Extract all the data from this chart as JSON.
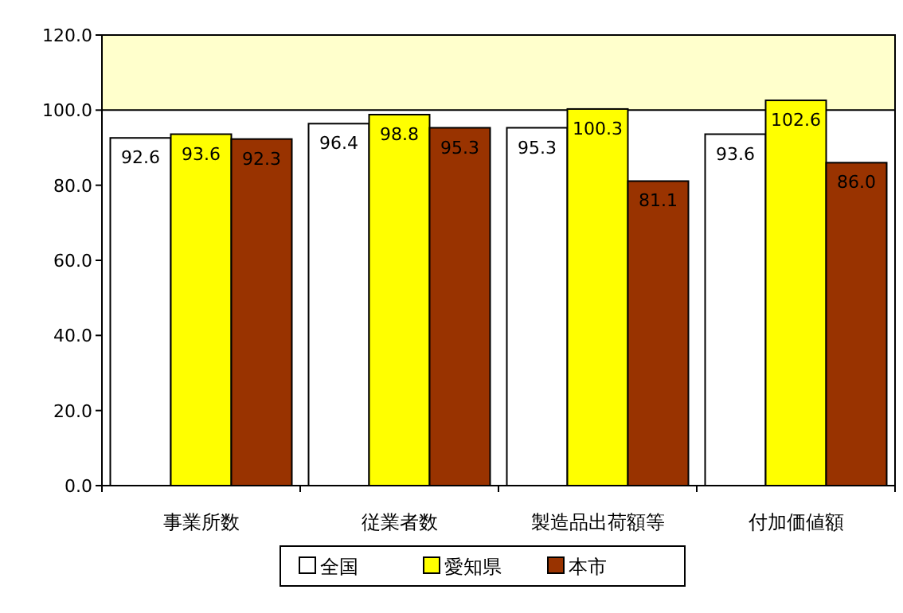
{
  "chart_data": {
    "type": "bar",
    "categories": [
      "事業所数",
      "従業者数",
      "製造品出荷額等",
      "付加価値額"
    ],
    "series": [
      {
        "name": "全国",
        "color": "#ffffff",
        "values": [
          92.6,
          96.4,
          95.3,
          93.6
        ]
      },
      {
        "name": "愛知県",
        "color": "#ffff00",
        "values": [
          93.6,
          98.8,
          100.3,
          102.6
        ]
      },
      {
        "name": "本市",
        "color": "#993300",
        "values": [
          92.3,
          95.3,
          81.1,
          86.0
        ],
        "value_labels": [
          "92.3",
          "95.3",
          "81.1",
          "86.0"
        ]
      }
    ],
    "ylim": [
      0,
      120
    ],
    "yticks": [
      {
        "value": 0,
        "label": "0.0"
      },
      {
        "value": 20,
        "label": "20.0"
      },
      {
        "value": 40,
        "label": "40.0"
      },
      {
        "value": 60,
        "label": "60.0"
      },
      {
        "value": 80,
        "label": "80.0"
      },
      {
        "value": 100,
        "label": "100.0"
      },
      {
        "value": 120,
        "label": "120.0"
      }
    ],
    "bands": [
      {
        "axis": "y",
        "from": 100,
        "to": 120,
        "color": "#ffffcc"
      }
    ],
    "ref_lines": [
      {
        "axis": "y",
        "value": 100,
        "color": "#000000"
      }
    ],
    "data_labels": true,
    "grid": false,
    "legend": "bottom"
  }
}
